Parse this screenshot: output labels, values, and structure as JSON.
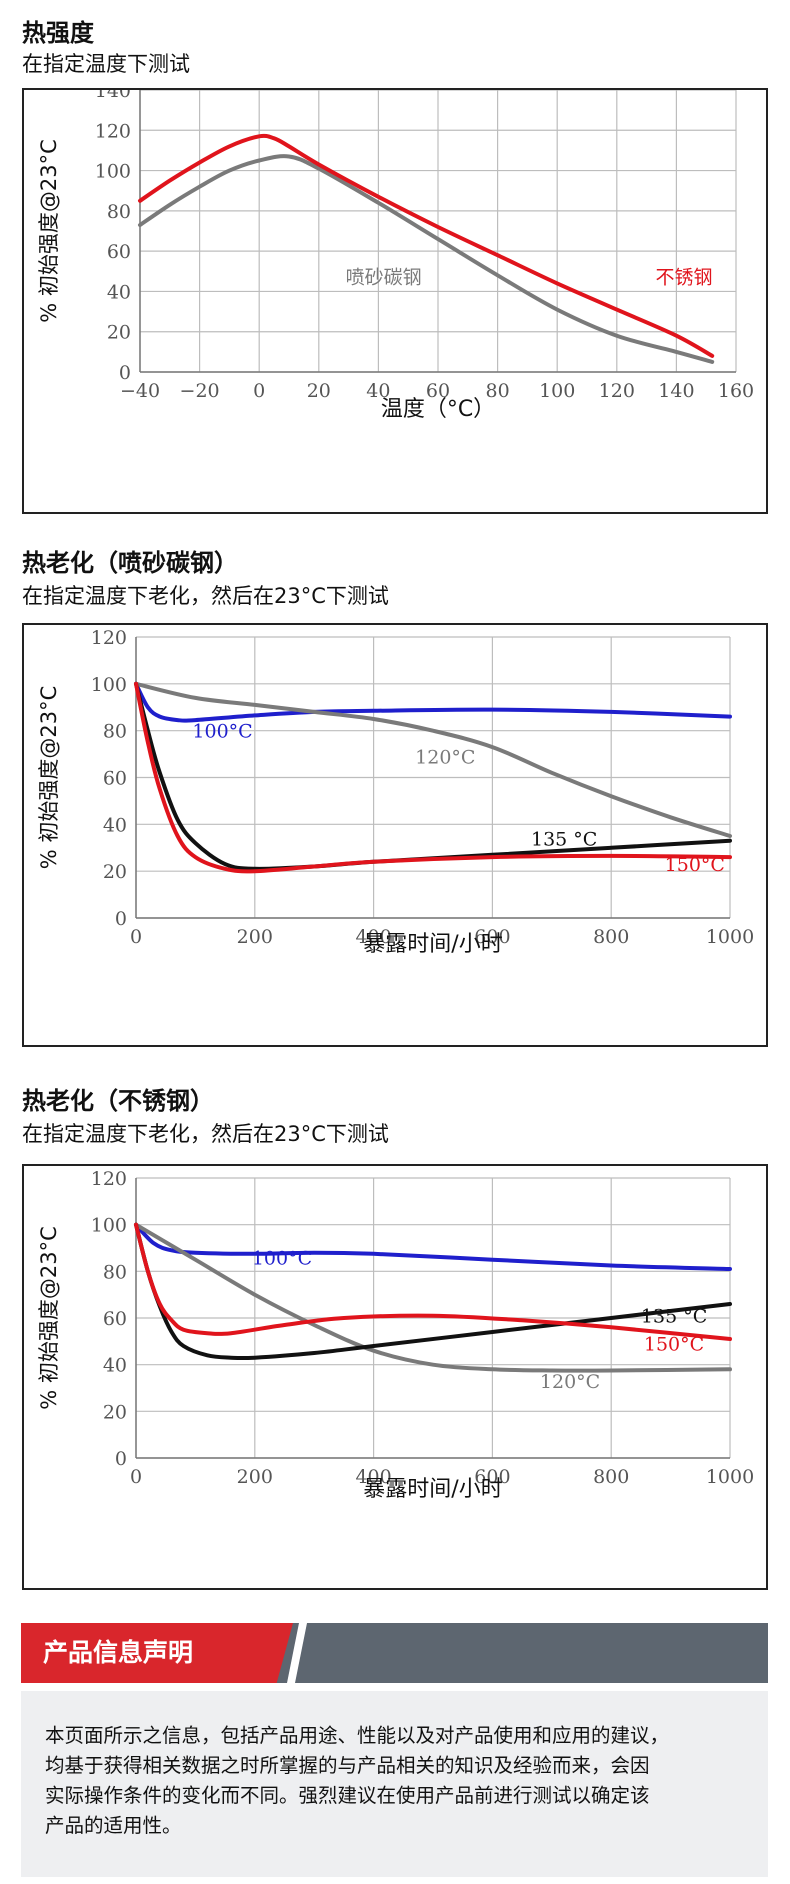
{
  "sections": [
    {
      "title": "热强度",
      "subtitle": "在指定温度下测试"
    },
    {
      "title": "热老化（喷砂碳钢）",
      "subtitle": "在指定温度下老化，然后在23°C下测试"
    },
    {
      "title": "热老化（不锈钢）",
      "subtitle": "在指定温度下老化，然后在23°C下测试"
    }
  ],
  "notice": {
    "banner": "产品信息声明",
    "lines": [
      "本页面所示之信息，包括产品用途、性能以及对产品使用和应用的建议，",
      "均基于获得相关数据之时所掌握的与产品相关的知识及经验而来，会因",
      "实际操作条件的变化而不同。强烈建议在使用产品前进行测试以确定该",
      "产品的适用性。"
    ]
  },
  "colors": {
    "red": "#e0141c",
    "gray": "#7a7a7a",
    "blue": "#1f1fcc",
    "black": "#111111",
    "grid": "#bdbdbd",
    "banner_red": "#d9262c",
    "banner_gray": "#5d6670"
  },
  "chart_data": [
    {
      "type": "line",
      "xlabel": "温度（°C）",
      "ylabel": "% 初始强度@23°C",
      "xlim": [
        -40,
        160
      ],
      "ylim": [
        0,
        140
      ],
      "xticks": [
        -40,
        -20,
        0,
        20,
        40,
        60,
        80,
        100,
        120,
        140,
        160
      ],
      "yticks": [
        0,
        20,
        40,
        60,
        80,
        100,
        120,
        140
      ],
      "grid": true,
      "series": [
        {
          "name": "喷砂碳钢",
          "color": "#7a7a7a",
          "points": [
            [
              -40,
              73
            ],
            [
              -30,
              83
            ],
            [
              -20,
              92
            ],
            [
              -10,
              100
            ],
            [
              0,
              105
            ],
            [
              10,
              107
            ],
            [
              20,
              101
            ],
            [
              40,
              84
            ],
            [
              60,
              66
            ],
            [
              80,
              48
            ],
            [
              100,
              31
            ],
            [
              120,
              18
            ],
            [
              140,
              10
            ],
            [
              152,
              5
            ]
          ]
        },
        {
          "name": "不锈钢",
          "color": "#e0141c",
          "points": [
            [
              -40,
              85
            ],
            [
              -30,
              95
            ],
            [
              -20,
              104
            ],
            [
              -10,
              112
            ],
            [
              0,
              117
            ],
            [
              5,
              116
            ],
            [
              10,
              112
            ],
            [
              20,
              103
            ],
            [
              40,
              87
            ],
            [
              60,
              72
            ],
            [
              80,
              58
            ],
            [
              100,
              44
            ],
            [
              120,
              31
            ],
            [
              140,
              18
            ],
            [
              152,
              8
            ]
          ]
        }
      ],
      "labels": [
        {
          "text": "喷砂碳钢",
          "x": 29,
          "y": 44,
          "color": "#7a7a7a"
        },
        {
          "text": "不锈钢",
          "x": 133,
          "y": 44,
          "color": "#e0141c"
        }
      ]
    },
    {
      "type": "line",
      "xlabel": "暴露时间/小时",
      "ylabel": "% 初始强度@23°C",
      "xlim": [
        0,
        1000
      ],
      "ylim": [
        0,
        120
      ],
      "xticks": [
        0,
        200,
        400,
        600,
        800,
        1000
      ],
      "yticks": [
        0,
        20,
        40,
        60,
        80,
        100,
        120
      ],
      "grid": true,
      "series": [
        {
          "name": "100°C",
          "color": "#1f1fcc",
          "points": [
            [
              0,
              100
            ],
            [
              20,
              90
            ],
            [
              40,
              86
            ],
            [
              70,
              84.5
            ],
            [
              100,
              84.5
            ],
            [
              200,
              86.5
            ],
            [
              300,
              88
            ],
            [
              400,
              88.5
            ],
            [
              600,
              89
            ],
            [
              800,
              88
            ],
            [
              1000,
              86
            ]
          ]
        },
        {
          "name": "120°C",
          "color": "#7a7a7a",
          "points": [
            [
              0,
              100
            ],
            [
              100,
              94
            ],
            [
              200,
              91
            ],
            [
              300,
              88
            ],
            [
              400,
              85
            ],
            [
              500,
              80
            ],
            [
              600,
              73
            ],
            [
              700,
              62
            ],
            [
              800,
              52
            ],
            [
              900,
              43
            ],
            [
              1000,
              35
            ]
          ]
        },
        {
          "name": "135°C",
          "color": "#111111",
          "points": [
            [
              0,
              100
            ],
            [
              20,
              80
            ],
            [
              40,
              62
            ],
            [
              70,
              42
            ],
            [
              100,
              32
            ],
            [
              150,
              23
            ],
            [
              200,
              21
            ],
            [
              300,
              22
            ],
            [
              400,
              24
            ],
            [
              600,
              27
            ],
            [
              800,
              30
            ],
            [
              1000,
              33
            ]
          ]
        },
        {
          "name": "150°C",
          "color": "#e0141c",
          "points": [
            [
              0,
              100
            ],
            [
              20,
              75
            ],
            [
              40,
              55
            ],
            [
              70,
              35
            ],
            [
              100,
              26
            ],
            [
              150,
              21
            ],
            [
              200,
              20
            ],
            [
              300,
              22
            ],
            [
              400,
              24
            ],
            [
              600,
              26
            ],
            [
              800,
              26.5
            ],
            [
              1000,
              26
            ]
          ]
        }
      ],
      "labels": [
        {
          "text": "100°C",
          "x": 95,
          "y": 77,
          "color": "#1f1fcc"
        },
        {
          "text": "120°C",
          "x": 470,
          "y": 66,
          "color": "#7a7a7a"
        },
        {
          "text": "135 °C",
          "x": 665,
          "y": 31,
          "color": "#111111"
        },
        {
          "text": "150°C",
          "x": 890,
          "y": 20,
          "color": "#e0141c"
        }
      ]
    },
    {
      "type": "line",
      "xlabel": "暴露时间/小时",
      "ylabel": "% 初始强度@23°C",
      "xlim": [
        0,
        1000
      ],
      "ylim": [
        0,
        120
      ],
      "xticks": [
        0,
        200,
        400,
        600,
        800,
        1000
      ],
      "yticks": [
        0,
        20,
        40,
        60,
        80,
        100,
        120
      ],
      "grid": true,
      "series": [
        {
          "name": "100°C",
          "color": "#1f1fcc",
          "points": [
            [
              0,
              100
            ],
            [
              30,
              92
            ],
            [
              60,
              89
            ],
            [
              100,
              88
            ],
            [
              200,
              87.5
            ],
            [
              300,
              88
            ],
            [
              400,
              87.5
            ],
            [
              600,
              85
            ],
            [
              800,
              82.5
            ],
            [
              1000,
              81
            ]
          ]
        },
        {
          "name": "120°C",
          "color": "#7a7a7a",
          "points": [
            [
              0,
              100
            ],
            [
              100,
              85
            ],
            [
              200,
              70
            ],
            [
              300,
              57
            ],
            [
              400,
              46
            ],
            [
              500,
              40
            ],
            [
              600,
              38
            ],
            [
              700,
              37.5
            ],
            [
              800,
              37.5
            ],
            [
              1000,
              38
            ]
          ]
        },
        {
          "name": "135°C",
          "color": "#111111",
          "points": [
            [
              0,
              100
            ],
            [
              20,
              80
            ],
            [
              40,
              65
            ],
            [
              60,
              54
            ],
            [
              80,
              48
            ],
            [
              120,
              44
            ],
            [
              160,
              43
            ],
            [
              200,
              43
            ],
            [
              300,
              45
            ],
            [
              400,
              48
            ],
            [
              600,
              54
            ],
            [
              800,
              60
            ],
            [
              1000,
              66
            ]
          ]
        },
        {
          "name": "150°C",
          "color": "#e0141c",
          "points": [
            [
              0,
              100
            ],
            [
              20,
              80
            ],
            [
              40,
              66
            ],
            [
              60,
              59
            ],
            [
              80,
              55
            ],
            [
              120,
              53.5
            ],
            [
              160,
              53.5
            ],
            [
              250,
              57
            ],
            [
              350,
              60
            ],
            [
              500,
              61
            ],
            [
              650,
              59
            ],
            [
              800,
              56
            ],
            [
              1000,
              51
            ]
          ]
        }
      ],
      "labels": [
        {
          "text": "100°C",
          "x": 195,
          "y": 83,
          "color": "#1f1fcc"
        },
        {
          "text": "135 °C",
          "x": 850,
          "y": 58,
          "color": "#111111"
        },
        {
          "text": "150°C",
          "x": 855,
          "y": 46,
          "color": "#e0141c"
        },
        {
          "text": "120°C",
          "x": 680,
          "y": 30,
          "color": "#7a7a7a"
        }
      ]
    }
  ]
}
